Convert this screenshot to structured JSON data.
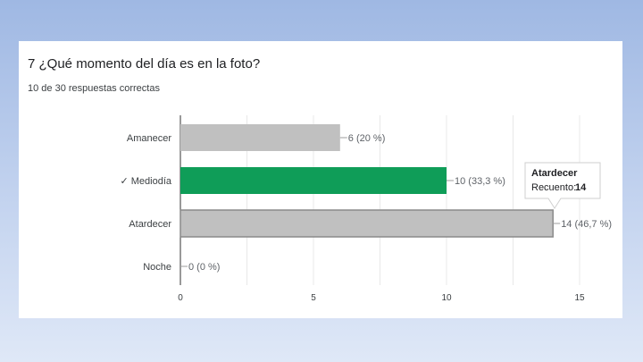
{
  "question": {
    "title": "7 ¿Qué momento del día es en la foto?",
    "subtitle": "10 de 30 respuestas correctas"
  },
  "colors": {
    "bar_default": "#c0c0c0",
    "bar_correct": "#0f9d58",
    "grid": "#e8e8e8"
  },
  "chart_data": {
    "type": "bar",
    "orientation": "horizontal",
    "categories": [
      "Amanecer",
      "✓ Mediodía",
      "Atardecer",
      "Noche"
    ],
    "values": [
      6,
      10,
      14,
      0
    ],
    "data_labels": [
      "6 (20 %)",
      "10 (33,3 %)",
      "14 (46,7 %)",
      "0 (0 %)"
    ],
    "correct_index": 1,
    "xlim": [
      0,
      15
    ],
    "xticks": [
      0,
      5,
      10,
      15
    ],
    "grid": true,
    "tooltip": {
      "category_index": 2,
      "title": "Atardecer",
      "label": "Recuento:",
      "value": "14"
    }
  }
}
